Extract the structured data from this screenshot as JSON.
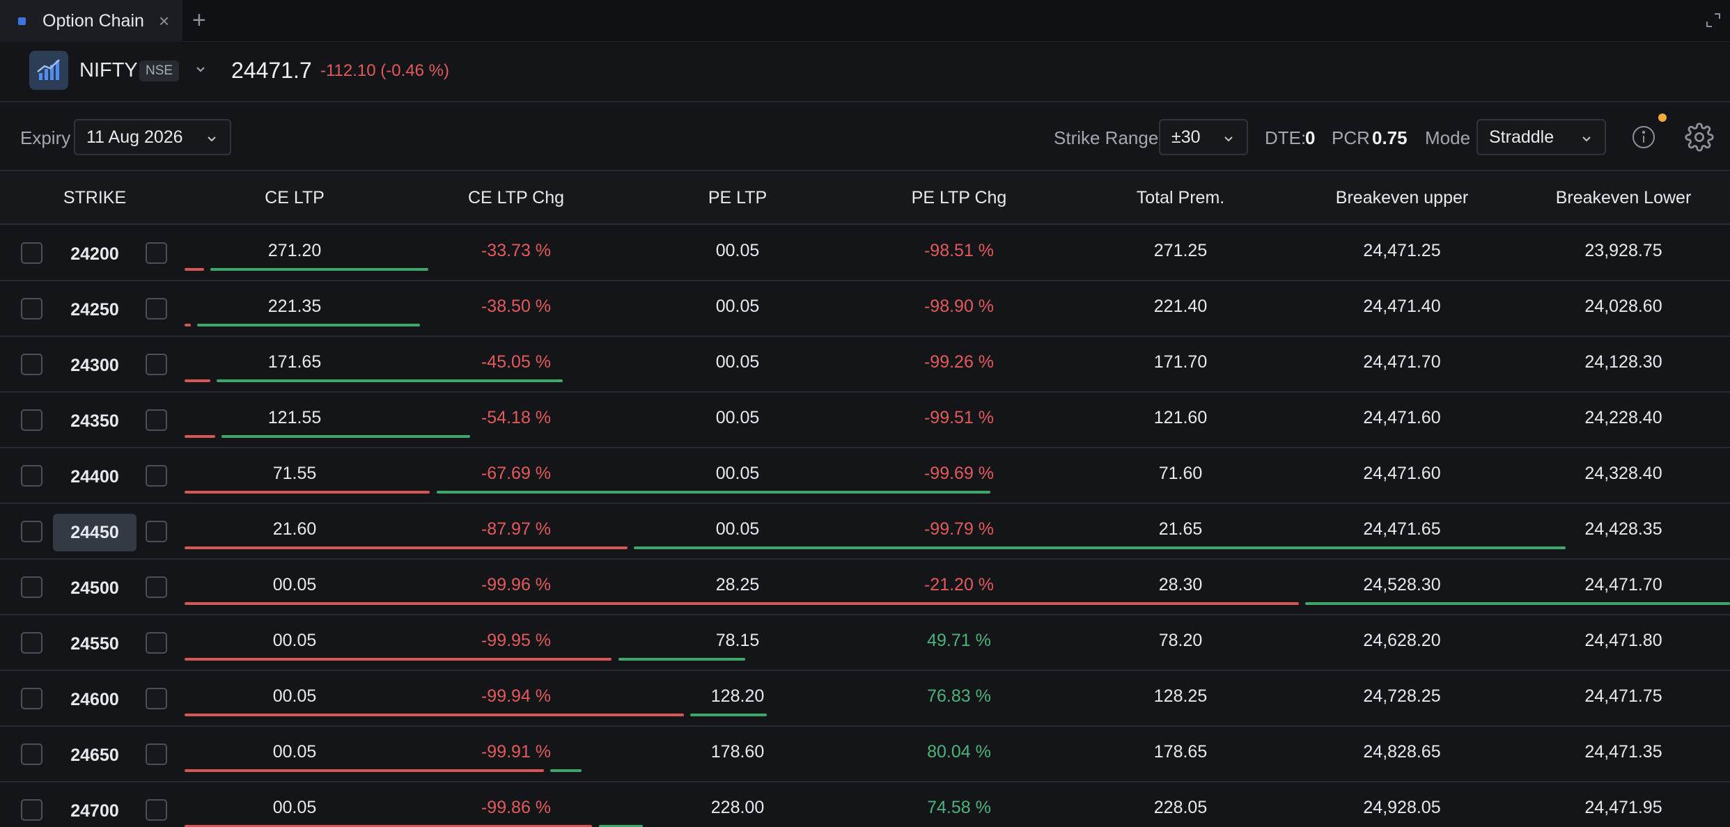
{
  "tab": {
    "title": "Option Chain",
    "close": "×",
    "add": "+"
  },
  "header": {
    "symbol": "NIFTY",
    "exchange": "NSE",
    "ltp": "24471.7",
    "change": "-112.10 (-0.46 %)"
  },
  "toolbar": {
    "expiry_label": "Expiry",
    "expiry_value": "11 Aug 2026",
    "strike_range_label": "Strike Range",
    "strike_range_value": "±30",
    "dte_label": "DTE:",
    "dte_value": "0",
    "pcr_label": "PCR",
    "pcr_value": "0.75",
    "mode_label": "Mode",
    "mode_value": "Straddle"
  },
  "columns": [
    "STRIKE",
    "CE LTP",
    "CE LTP Chg",
    "PE LTP",
    "PE LTP Chg",
    "Total Prem.",
    "Breakeven upper",
    "Breakeven Lower"
  ],
  "colors": {
    "negative": "#e45a5a",
    "positive": "#4cb37a",
    "accent": "#3d74e0",
    "notification": "#f2a93b"
  },
  "rows": [
    {
      "strike": "24200",
      "ce_ltp": "271.20",
      "ce_chg": "-33.73 %",
      "pe_ltp": "00.05",
      "pe_chg": "-98.51 %",
      "total": "271.25",
      "be_upper": "24,471.25",
      "be_lower": "23,928.75",
      "atm": false
    },
    {
      "strike": "24250",
      "ce_ltp": "221.35",
      "ce_chg": "-38.50 %",
      "pe_ltp": "00.05",
      "pe_chg": "-98.90 %",
      "total": "221.40",
      "be_upper": "24,471.40",
      "be_lower": "24,028.60",
      "atm": false
    },
    {
      "strike": "24300",
      "ce_ltp": "171.65",
      "ce_chg": "-45.05 %",
      "pe_ltp": "00.05",
      "pe_chg": "-99.26 %",
      "total": "171.70",
      "be_upper": "24,471.70",
      "be_lower": "24,128.30",
      "atm": false
    },
    {
      "strike": "24350",
      "ce_ltp": "121.55",
      "ce_chg": "-54.18 %",
      "pe_ltp": "00.05",
      "pe_chg": "-99.51 %",
      "total": "121.60",
      "be_upper": "24,471.60",
      "be_lower": "24,228.40",
      "atm": false
    },
    {
      "strike": "24400",
      "ce_ltp": "71.55",
      "ce_chg": "-67.69 %",
      "pe_ltp": "00.05",
      "pe_chg": "-99.69 %",
      "total": "71.60",
      "be_upper": "24,471.60",
      "be_lower": "24,328.40",
      "atm": false
    },
    {
      "strike": "24450",
      "ce_ltp": "21.60",
      "ce_chg": "-87.97 %",
      "pe_ltp": "00.05",
      "pe_chg": "-99.79 %",
      "total": "21.65",
      "be_upper": "24,471.65",
      "be_lower": "24,428.35",
      "atm": true
    },
    {
      "strike": "24500",
      "ce_ltp": "00.05",
      "ce_chg": "-99.96 %",
      "pe_ltp": "28.25",
      "pe_chg": "-21.20 %",
      "total": "28.30",
      "be_upper": "24,528.30",
      "be_lower": "24,471.70",
      "atm": false
    },
    {
      "strike": "24550",
      "ce_ltp": "00.05",
      "ce_chg": "-99.95 %",
      "pe_ltp": "78.15",
      "pe_chg": "49.71 %",
      "total": "78.20",
      "be_upper": "24,628.20",
      "be_lower": "24,471.80",
      "atm": false
    },
    {
      "strike": "24600",
      "ce_ltp": "00.05",
      "ce_chg": "-99.94 %",
      "pe_ltp": "128.20",
      "pe_chg": "76.83 %",
      "total": "128.25",
      "be_upper": "24,728.25",
      "be_lower": "24,471.75",
      "atm": false
    },
    {
      "strike": "24650",
      "ce_ltp": "00.05",
      "ce_chg": "-99.91 %",
      "pe_ltp": "178.60",
      "pe_chg": "80.04 %",
      "total": "178.65",
      "be_upper": "24,828.65",
      "be_lower": "24,471.35",
      "atm": false
    },
    {
      "strike": "24700",
      "ce_ltp": "00.05",
      "ce_chg": "-99.86 %",
      "pe_ltp": "228.00",
      "pe_chg": "74.58 %",
      "total": "228.05",
      "be_upper": "24,928.05",
      "be_lower": "24,471.95",
      "atm": false
    }
  ]
}
